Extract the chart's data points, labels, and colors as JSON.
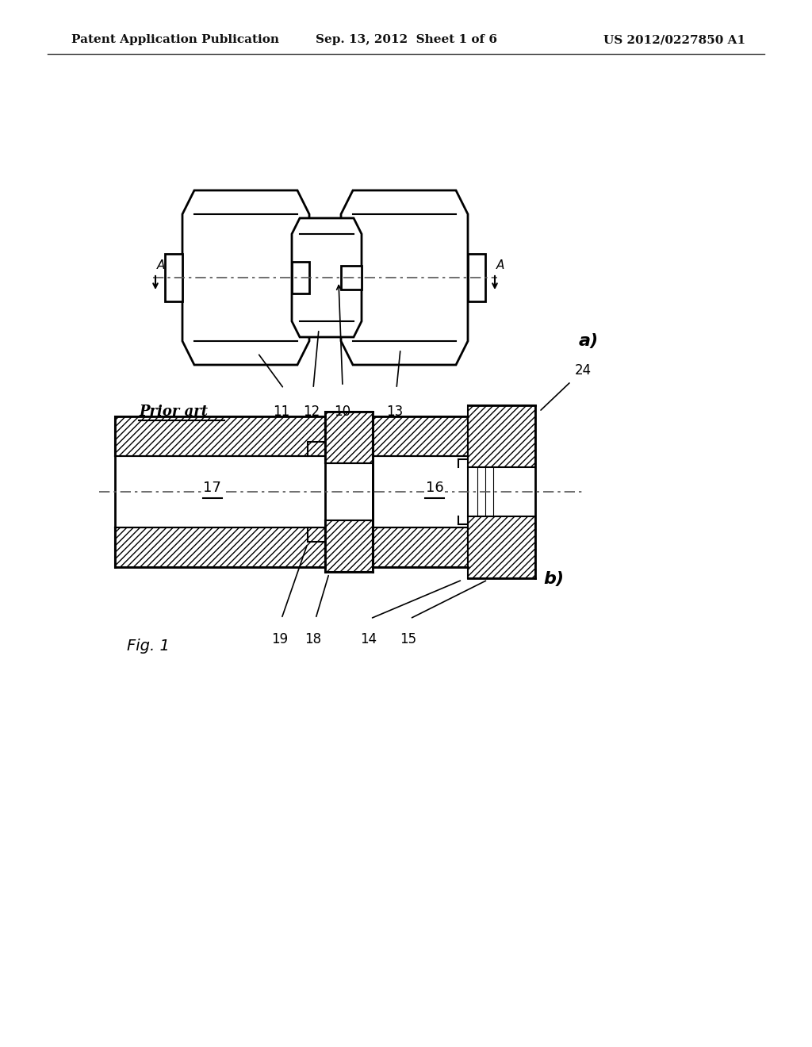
{
  "background_color": "#ffffff",
  "header_left": "Patent Application Publication",
  "header_center": "Sep. 13, 2012  Sheet 1 of 6",
  "header_right": "US 2012/0227850 A1",
  "header_fontsize": 11,
  "fig_label_a": "a)",
  "fig_label_b": "b)",
  "fig1_label": "Fig. 1",
  "prior_art_label": "Prior art",
  "line_color": "#000000",
  "part_labels_a": [
    "11",
    "12",
    "10",
    "13"
  ],
  "part_labels_b_top": [
    "17",
    "16"
  ],
  "part_labels_b_bot": [
    "19",
    "18",
    "14",
    "15"
  ],
  "label_24": "24"
}
